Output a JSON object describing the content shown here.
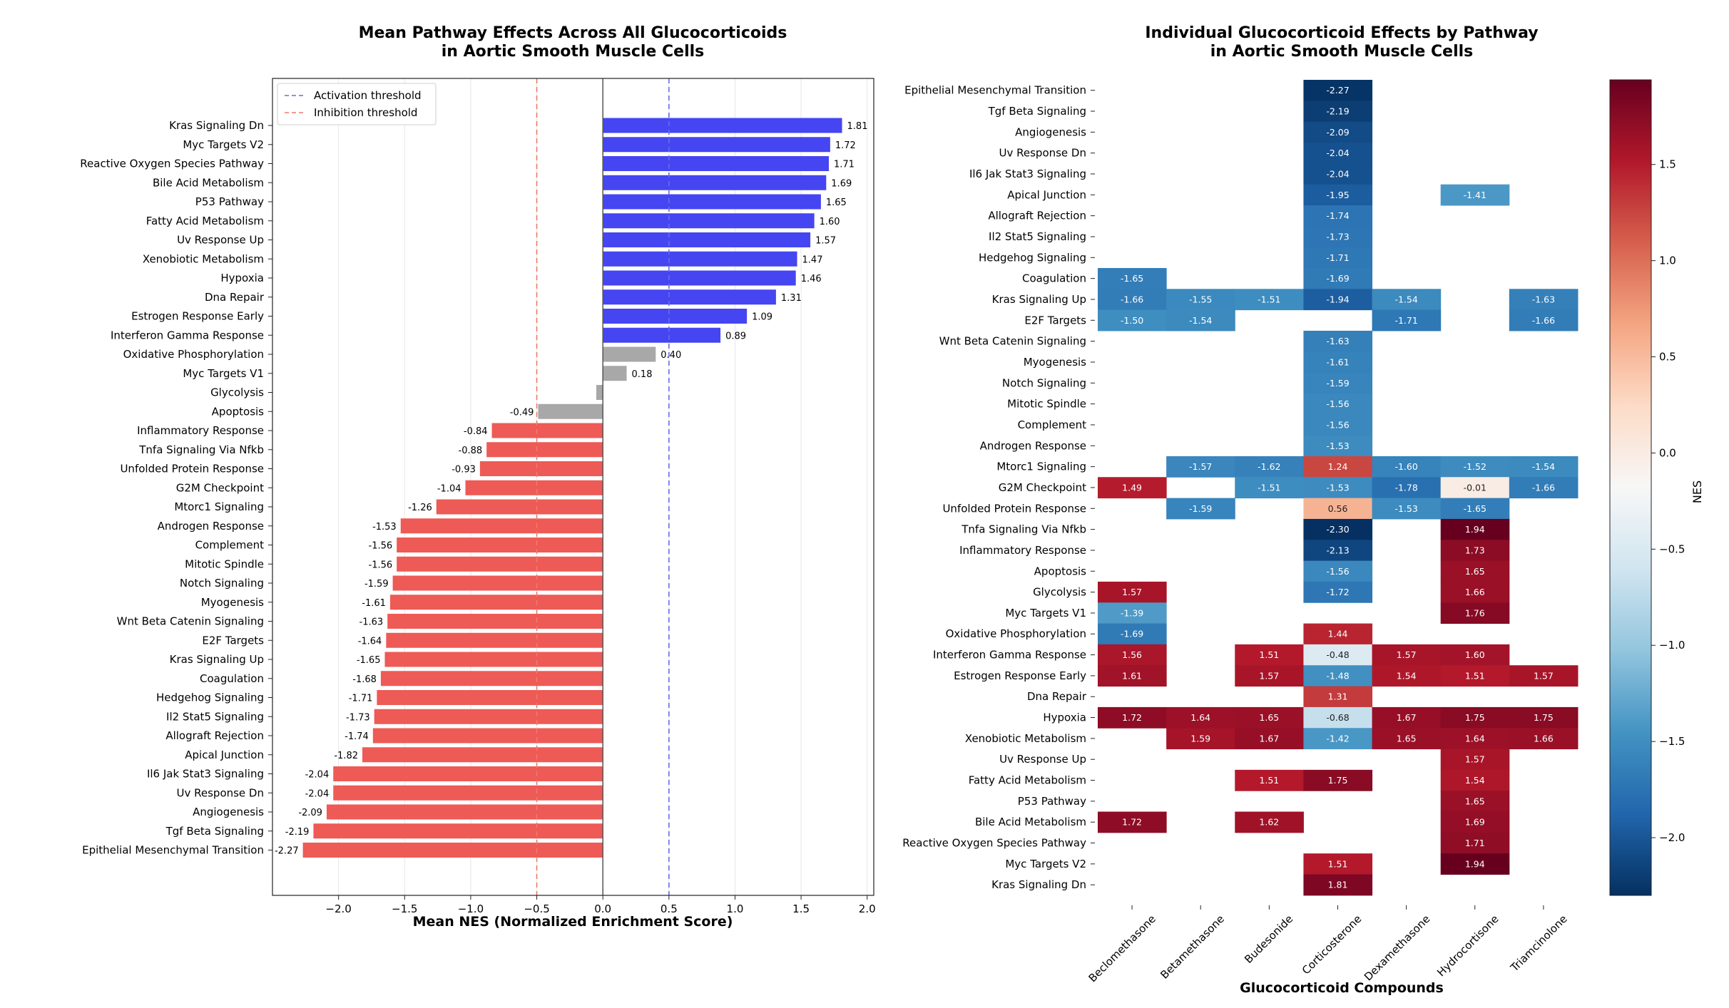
{
  "chart_data": [
    {
      "type": "bar",
      "orientation": "horizontal",
      "title_line1": "Mean Pathway Effects Across All Glucocorticoids",
      "title_line2": "in Aortic Smooth Muscle Cells",
      "xlabel": "Mean NES (Normalized Enrichment Score)",
      "ylabel": "",
      "xlim": [
        -2.5,
        2.05
      ],
      "xticks": [
        -2.0,
        -1.5,
        -1.0,
        -0.5,
        0.0,
        0.5,
        1.0,
        1.5,
        2.0
      ],
      "xtick_labels": [
        "−2.0",
        "−1.5",
        "−1.0",
        "−0.5",
        "0.0",
        "0.5",
        "1.0",
        "1.5",
        "2.0"
      ],
      "grid": true,
      "thresholds": [
        {
          "name": "Activation threshold",
          "value": 0.5,
          "color": "#6a6ae8"
        },
        {
          "name": "Inhibition threshold",
          "value": -0.5,
          "color": "#ee7a6a"
        }
      ],
      "legend_position": "top-left",
      "colors": {
        "activated": "#4545f2",
        "inhibited": "#ee5a55",
        "neutral": "#a8a8a8"
      },
      "categories": [
        "Kras Signaling Dn",
        "Myc Targets V2",
        "Reactive Oxygen Species Pathway",
        "Bile Acid Metabolism",
        "P53 Pathway",
        "Fatty Acid Metabolism",
        "Uv Response Up",
        "Xenobiotic Metabolism",
        "Hypoxia",
        "Dna Repair",
        "Estrogen Response Early",
        "Interferon Gamma Response",
        "Oxidative Phosphorylation",
        "Myc Targets V1",
        "Glycolysis",
        "Apoptosis",
        "Inflammatory Response",
        "Tnfa Signaling Via Nfkb",
        "Unfolded Protein Response",
        "G2M Checkpoint",
        "Mtorc1 Signaling",
        "Androgen Response",
        "Complement",
        "Mitotic Spindle",
        "Notch Signaling",
        "Myogenesis",
        "Wnt Beta Catenin Signaling",
        "E2F Targets",
        "Kras Signaling Up",
        "Coagulation",
        "Hedgehog Signaling",
        "Il2 Stat5 Signaling",
        "Allograft Rejection",
        "Apical Junction",
        "Il6 Jak Stat3 Signaling",
        "Uv Response Dn",
        "Angiogenesis",
        "Tgf Beta Signaling",
        "Epithelial Mesenchymal Transition"
      ],
      "values": [
        1.81,
        1.72,
        1.71,
        1.69,
        1.65,
        1.6,
        1.57,
        1.47,
        1.46,
        1.31,
        1.09,
        0.89,
        0.4,
        0.18,
        -0.05,
        -0.49,
        -0.84,
        -0.88,
        -0.93,
        -1.04,
        -1.26,
        -1.53,
        -1.56,
        -1.56,
        -1.59,
        -1.61,
        -1.63,
        -1.64,
        -1.65,
        -1.68,
        -1.71,
        -1.73,
        -1.74,
        -1.82,
        -2.04,
        -2.04,
        -2.09,
        -2.19,
        -2.27
      ],
      "value_labels": [
        "1.81",
        "1.72",
        "1.71",
        "1.69",
        "1.65",
        "1.60",
        "1.57",
        "1.47",
        "1.46",
        "1.31",
        "1.09",
        "0.89",
        "0.40",
        "0.18",
        "",
        "-0.49",
        "-0.84",
        "-0.88",
        "-0.93",
        "-1.04",
        "-1.26",
        "-1.53",
        "-1.56",
        "-1.56",
        "-1.59",
        "-1.61",
        "-1.63",
        "-1.64",
        "-1.65",
        "-1.68",
        "-1.71",
        "-1.73",
        "-1.74",
        "-1.82",
        "-2.04",
        "-2.04",
        "-2.09",
        "-2.19",
        "-2.27"
      ]
    },
    {
      "type": "heatmap",
      "title_line1": "Individual Glucocorticoid Effects by Pathway",
      "title_line2": "in Aortic Smooth Muscle Cells",
      "xlabel": "Glucocorticoid Compounds",
      "colorbar_label": "NES",
      "colorbar_range": [
        -2.3,
        1.94
      ],
      "colorbar_ticks": [
        1.5,
        1.0,
        0.5,
        0.0,
        -0.5,
        -1.0,
        -1.5,
        -2.0
      ],
      "colorbar_tick_labels": [
        "1.5",
        "1.0",
        "0.5",
        "0.0",
        "−0.5",
        "−1.0",
        "−1.5",
        "−2.0"
      ],
      "colormap": "RdBu_r",
      "colormap_stops": [
        "#053061",
        "#2166ac",
        "#4393c3",
        "#92c5de",
        "#d1e5f0",
        "#f7f7f7",
        "#fddbc7",
        "#f4a582",
        "#d6604d",
        "#b2182b",
        "#67001f"
      ],
      "compounds": [
        "Beclomethasone",
        "Betamethasone",
        "Budesonide",
        "Corticosterone",
        "Dexamethasone",
        "Hydrocortisone",
        "Triamcinolone"
      ],
      "pathways": [
        "Epithelial Mesenchymal Transition",
        "Tgf Beta Signaling",
        "Angiogenesis",
        "Uv Response Dn",
        "Il6 Jak Stat3 Signaling",
        "Apical Junction",
        "Allograft Rejection",
        "Il2 Stat5 Signaling",
        "Hedgehog Signaling",
        "Coagulation",
        "Kras Signaling Up",
        "E2F Targets",
        "Wnt Beta Catenin Signaling",
        "Myogenesis",
        "Notch Signaling",
        "Mitotic Spindle",
        "Complement",
        "Androgen Response",
        "Mtorc1 Signaling",
        "G2M Checkpoint",
        "Unfolded Protein Response",
        "Tnfa Signaling Via Nfkb",
        "Inflammatory Response",
        "Apoptosis",
        "Glycolysis",
        "Myc Targets V1",
        "Oxidative Phosphorylation",
        "Interferon Gamma Response",
        "Estrogen Response Early",
        "Dna Repair",
        "Hypoxia",
        "Xenobiotic Metabolism",
        "Uv Response Up",
        "Fatty Acid Metabolism",
        "P53 Pathway",
        "Bile Acid Metabolism",
        "Reactive Oxygen Species Pathway",
        "Myc Targets V2",
        "Kras Signaling Dn"
      ],
      "values": [
        [
          null,
          null,
          null,
          -2.27,
          null,
          null,
          null
        ],
        [
          null,
          null,
          null,
          -2.19,
          null,
          null,
          null
        ],
        [
          null,
          null,
          null,
          -2.09,
          null,
          null,
          null
        ],
        [
          null,
          null,
          null,
          -2.04,
          null,
          null,
          null
        ],
        [
          null,
          null,
          null,
          -2.04,
          null,
          null,
          null
        ],
        [
          null,
          null,
          null,
          -1.95,
          null,
          -1.41,
          null
        ],
        [
          null,
          null,
          null,
          -1.74,
          null,
          null,
          null
        ],
        [
          null,
          null,
          null,
          -1.73,
          null,
          null,
          null
        ],
        [
          null,
          null,
          null,
          -1.71,
          null,
          null,
          null
        ],
        [
          -1.65,
          null,
          null,
          -1.69,
          null,
          null,
          null
        ],
        [
          -1.66,
          -1.55,
          -1.51,
          -1.94,
          -1.54,
          null,
          -1.63
        ],
        [
          -1.5,
          -1.54,
          null,
          null,
          -1.71,
          null,
          -1.66
        ],
        [
          null,
          null,
          null,
          -1.63,
          null,
          null,
          null
        ],
        [
          null,
          null,
          null,
          -1.61,
          null,
          null,
          null
        ],
        [
          null,
          null,
          null,
          -1.59,
          null,
          null,
          null
        ],
        [
          null,
          null,
          null,
          -1.56,
          null,
          null,
          null
        ],
        [
          null,
          null,
          null,
          -1.56,
          null,
          null,
          null
        ],
        [
          null,
          null,
          null,
          -1.53,
          null,
          null,
          null
        ],
        [
          null,
          -1.57,
          -1.62,
          1.24,
          -1.6,
          -1.52,
          -1.54
        ],
        [
          1.49,
          null,
          -1.51,
          -1.53,
          -1.78,
          -0.01,
          -1.66
        ],
        [
          null,
          -1.59,
          null,
          0.56,
          -1.53,
          -1.65,
          null
        ],
        [
          null,
          null,
          null,
          -2.3,
          null,
          1.94,
          null
        ],
        [
          null,
          null,
          null,
          -2.13,
          null,
          1.73,
          null
        ],
        [
          null,
          null,
          null,
          -1.56,
          null,
          1.65,
          null
        ],
        [
          1.57,
          null,
          null,
          -1.72,
          null,
          1.66,
          null
        ],
        [
          -1.39,
          null,
          null,
          null,
          null,
          1.76,
          null
        ],
        [
          -1.69,
          null,
          null,
          1.44,
          null,
          null,
          null
        ],
        [
          1.56,
          null,
          1.51,
          -0.48,
          1.57,
          1.6,
          null
        ],
        [
          1.61,
          null,
          1.57,
          -1.48,
          1.54,
          1.51,
          1.57
        ],
        [
          null,
          null,
          null,
          1.31,
          null,
          null,
          null
        ],
        [
          1.72,
          1.64,
          1.65,
          -0.68,
          1.67,
          1.75,
          1.75
        ],
        [
          null,
          1.59,
          1.67,
          -1.42,
          1.65,
          1.64,
          1.66
        ],
        [
          null,
          null,
          null,
          null,
          null,
          1.57,
          null
        ],
        [
          null,
          null,
          1.51,
          1.75,
          null,
          1.54,
          null
        ],
        [
          null,
          null,
          null,
          null,
          null,
          1.65,
          null
        ],
        [
          1.72,
          null,
          1.62,
          null,
          null,
          1.69,
          null
        ],
        [
          null,
          null,
          null,
          null,
          null,
          1.71,
          null
        ],
        [
          null,
          null,
          null,
          1.51,
          null,
          1.94,
          null
        ],
        [
          null,
          null,
          null,
          1.81,
          null,
          null,
          null
        ]
      ]
    }
  ]
}
